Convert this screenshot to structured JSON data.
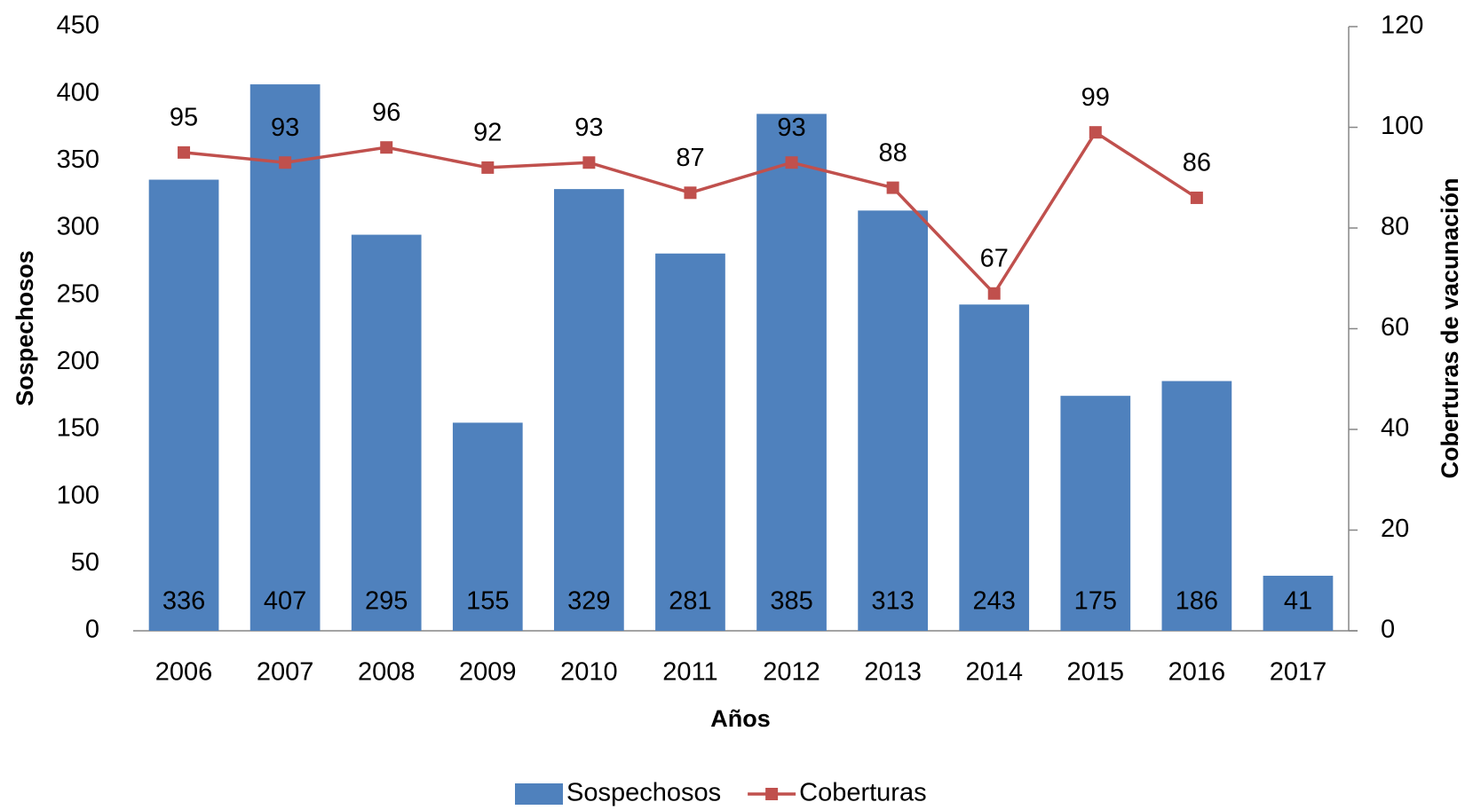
{
  "chart_data": {
    "type": "bar",
    "x_label": "Años",
    "y_label": "Sospechosos",
    "y2_label": "Coberturas de vacunación",
    "categories": [
      "2006",
      "2007",
      "2008",
      "2009",
      "2010",
      "2011",
      "2012",
      "2013",
      "2014",
      "2015",
      "2016",
      "2017"
    ],
    "series": [
      {
        "name": "Sospechosos",
        "type": "bar",
        "color": "#4f81bd",
        "values": [
          336,
          407,
          295,
          155,
          329,
          281,
          385,
          313,
          243,
          175,
          186,
          41
        ]
      },
      {
        "name": "Coberturas",
        "type": "line",
        "axis": "y2",
        "color": "#c0504d",
        "values": [
          95,
          93,
          96,
          92,
          93,
          87,
          93,
          88,
          67,
          99,
          86,
          null
        ]
      }
    ],
    "ylim": [
      0,
      450
    ],
    "yticks": [
      0,
      50,
      100,
      150,
      200,
      250,
      300,
      350,
      400,
      450
    ],
    "y2lim": [
      0,
      120
    ],
    "y2ticks": [
      0,
      20,
      40,
      60,
      80,
      100,
      120
    ],
    "legend": "bottom"
  }
}
